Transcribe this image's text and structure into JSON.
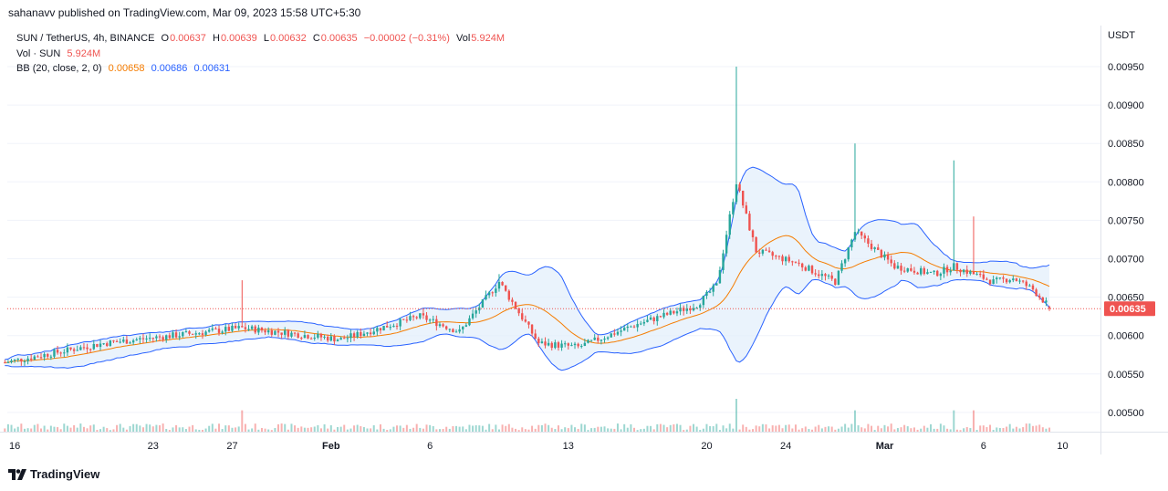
{
  "header": {
    "published_line": "sahanavv published on TradingView.com, Mar 09, 2023 15:58 UTC+5:30"
  },
  "legend": {
    "symbol": "SUN / TetherUS, 4h, BINANCE",
    "o_label": "O",
    "o_value": "0.00637",
    "h_label": "H",
    "h_value": "0.00639",
    "l_label": "L",
    "l_value": "0.00632",
    "c_label": "C",
    "c_value": "0.00635",
    "change": "−0.00002 (−0.31%)",
    "vol_label": "Vol",
    "vol_value": "5.924M",
    "vol_series": "Vol · SUN",
    "vol_series_value": "5.924M",
    "bb_label": "BB (20, close, 2, 0)",
    "bb_basis": "0.00658",
    "bb_upper": "0.00686",
    "bb_lower": "0.00631"
  },
  "price_scale": {
    "currency": "USDT",
    "ticks": [
      "0.00950",
      "0.00900",
      "0.00850",
      "0.00800",
      "0.00750",
      "0.00700",
      "0.00650",
      "0.00600",
      "0.00550",
      "0.00500"
    ],
    "last_price_label": "0.00635"
  },
  "time_scale": {
    "labels": [
      "16",
      "23",
      "27",
      "Feb",
      "6",
      "13",
      "20",
      "24",
      "Mar",
      "6",
      "10"
    ]
  },
  "brand": {
    "name": "TradingView"
  },
  "colors": {
    "up": "#26a69a",
    "down": "#ef5350",
    "basis": "#f57c00",
    "bands": "#2962ff",
    "band_fill": "#e3effb",
    "grid": "#f0f3fa",
    "last_price": "#ef5350"
  },
  "chart_data": {
    "type": "candlestick",
    "symbol": "SUN / TetherUS",
    "interval": "4h",
    "exchange": "BINANCE",
    "y_unit": "USDT",
    "ylim": [
      0.0046,
      0.0097
    ],
    "x_start": "Jan 15, 2023",
    "x_end": "Mar 11, 2023",
    "last": {
      "open": 0.00637,
      "high": 0.00639,
      "low": 0.00632,
      "close": 0.00635,
      "volume": "5.924M"
    },
    "bollinger": {
      "period": 20,
      "source": "close",
      "mult": 2,
      "offset": 0,
      "basis": 0.00658,
      "upper": 0.00686,
      "lower": 0.00631
    },
    "key_points": [
      {
        "date": "Jan 15",
        "price": 0.00565
      },
      {
        "date": "Jan 20",
        "price": 0.0059
      },
      {
        "date": "Jan 27",
        "price": 0.0061
      },
      {
        "date": "Feb 01",
        "price": 0.00595
      },
      {
        "date": "Feb 05",
        "price": 0.00625
      },
      {
        "date": "Feb 07",
        "price": 0.00605
      },
      {
        "date": "Feb 09",
        "price": 0.0067
      },
      {
        "date": "Feb 11",
        "price": 0.0059
      },
      {
        "date": "Feb 13",
        "price": 0.00585
      },
      {
        "date": "Feb 16",
        "price": 0.00615
      },
      {
        "date": "Feb 19",
        "price": 0.0064
      },
      {
        "date": "Feb 20",
        "price": 0.00665
      },
      {
        "date": "Feb 21",
        "price": 0.008
      },
      {
        "date": "Feb 22",
        "price": 0.0071
      },
      {
        "date": "Feb 24",
        "price": 0.00695
      },
      {
        "date": "Feb 26",
        "price": 0.0067
      },
      {
        "date": "Feb 27",
        "price": 0.00735
      },
      {
        "date": "Mar 01",
        "price": 0.0069
      },
      {
        "date": "Mar 03",
        "price": 0.0068
      },
      {
        "date": "Mar 04",
        "price": 0.0069
      },
      {
        "date": "Mar 06",
        "price": 0.0067
      },
      {
        "date": "Mar 07",
        "price": 0.00675
      },
      {
        "date": "Mar 08",
        "price": 0.0066
      },
      {
        "date": "Mar 09",
        "price": 0.00635
      }
    ],
    "wick_highs": [
      {
        "date": "Jan 27",
        "price": 0.00672
      },
      {
        "date": "Feb 09",
        "price": 0.0068
      },
      {
        "date": "Feb 21",
        "price": 0.0095
      },
      {
        "date": "Feb 27",
        "price": 0.0085
      },
      {
        "date": "Mar 04",
        "price": 0.00828
      },
      {
        "date": "Mar 05",
        "price": 0.00755
      }
    ],
    "volume_spikes": [
      "Jan 27",
      "Feb 21",
      "Feb 27",
      "Mar 04",
      "Mar 05"
    ]
  }
}
